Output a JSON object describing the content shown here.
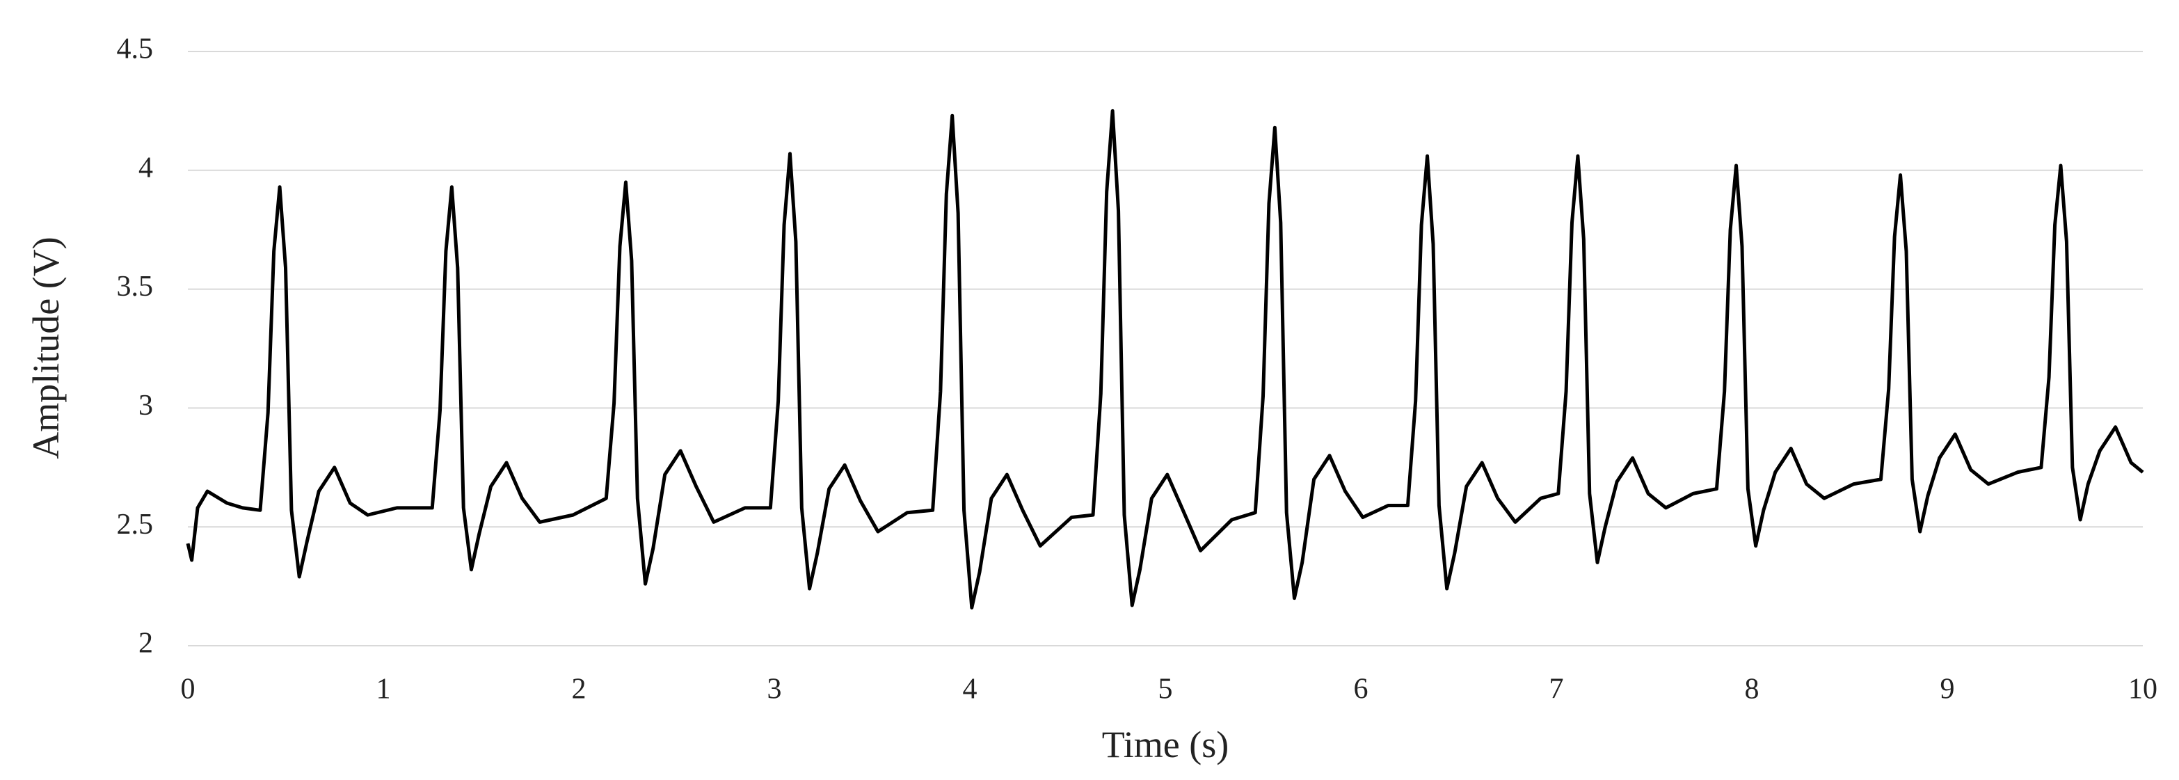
{
  "chart_data": {
    "type": "line",
    "xlabel": "Time (s)",
    "ylabel": "Amplitude (V)",
    "x": [
      0,
      0.02,
      0.05,
      0.1,
      0.2,
      0.28,
      0.37,
      0.41,
      0.44,
      0.47,
      0.5,
      0.53,
      0.57,
      0.61,
      0.67,
      0.75,
      0.83,
      0.92,
      1.07,
      1.25,
      1.29,
      1.32,
      1.35,
      1.38,
      1.41,
      1.45,
      1.49,
      1.55,
      1.63,
      1.71,
      1.8,
      1.97,
      2.14,
      2.18,
      2.21,
      2.24,
      2.27,
      2.3,
      2.34,
      2.38,
      2.44,
      2.52,
      2.6,
      2.69,
      2.85,
      2.98,
      3.02,
      3.05,
      3.08,
      3.11,
      3.14,
      3.18,
      3.22,
      3.28,
      3.36,
      3.44,
      3.53,
      3.68,
      3.81,
      3.85,
      3.88,
      3.91,
      3.94,
      3.97,
      4.01,
      4.05,
      4.11,
      4.19,
      4.27,
      4.36,
      4.52,
      4.63,
      4.67,
      4.7,
      4.73,
      4.76,
      4.79,
      4.83,
      4.87,
      4.93,
      5.01,
      5.09,
      5.18,
      5.34,
      5.46,
      5.5,
      5.53,
      5.56,
      5.59,
      5.62,
      5.66,
      5.7,
      5.76,
      5.84,
      5.92,
      6.01,
      6.14,
      6.24,
      6.28,
      6.31,
      6.34,
      6.37,
      6.4,
      6.44,
      6.48,
      6.54,
      6.62,
      6.7,
      6.79,
      6.92,
      7.01,
      7.05,
      7.08,
      7.11,
      7.14,
      7.17,
      7.21,
      7.25,
      7.31,
      7.39,
      7.47,
      7.56,
      7.7,
      7.82,
      7.86,
      7.89,
      7.92,
      7.95,
      7.98,
      8.02,
      8.06,
      8.12,
      8.2,
      8.28,
      8.37,
      8.52,
      8.66,
      8.7,
      8.73,
      8.76,
      8.79,
      8.82,
      8.86,
      8.9,
      8.96,
      9.04,
      9.12,
      9.21,
      9.36,
      9.48,
      9.52,
      9.55,
      9.58,
      9.61,
      9.64,
      9.68,
      9.72,
      9.78,
      9.86,
      9.94,
      10
    ],
    "values": [
      2.43,
      2.36,
      2.58,
      2.65,
      2.6,
      2.58,
      2.57,
      2.98,
      3.66,
      3.93,
      3.59,
      2.57,
      2.29,
      2.44,
      2.65,
      2.75,
      2.6,
      2.55,
      2.58,
      2.58,
      2.99,
      3.66,
      3.93,
      3.59,
      2.58,
      2.32,
      2.47,
      2.67,
      2.77,
      2.62,
      2.52,
      2.55,
      2.62,
      3.02,
      3.68,
      3.95,
      3.62,
      2.62,
      2.26,
      2.41,
      2.72,
      2.82,
      2.67,
      2.52,
      2.58,
      2.58,
      3.03,
      3.77,
      4.07,
      3.7,
      2.58,
      2.24,
      2.39,
      2.66,
      2.76,
      2.61,
      2.48,
      2.56,
      2.57,
      3.07,
      3.9,
      4.23,
      3.82,
      2.57,
      2.16,
      2.31,
      2.62,
      2.72,
      2.57,
      2.42,
      2.54,
      2.55,
      3.06,
      3.91,
      4.25,
      3.83,
      2.55,
      2.17,
      2.32,
      2.62,
      2.72,
      2.57,
      2.4,
      2.53,
      2.56,
      3.05,
      3.86,
      4.18,
      3.78,
      2.56,
      2.2,
      2.35,
      2.7,
      2.8,
      2.65,
      2.54,
      2.59,
      2.59,
      3.03,
      3.77,
      4.06,
      3.69,
      2.59,
      2.24,
      2.39,
      2.67,
      2.77,
      2.62,
      2.52,
      2.62,
      2.64,
      3.07,
      3.78,
      4.06,
      3.71,
      2.64,
      2.35,
      2.5,
      2.69,
      2.79,
      2.64,
      2.58,
      2.64,
      2.66,
      3.07,
      3.75,
      4.02,
      3.68,
      2.66,
      2.42,
      2.57,
      2.73,
      2.83,
      2.68,
      2.62,
      2.68,
      2.7,
      3.08,
      3.72,
      3.98,
      3.66,
      2.7,
      2.48,
      2.63,
      2.79,
      2.89,
      2.74,
      2.68,
      2.73,
      2.75,
      3.13,
      3.77,
      4.02,
      3.7,
      2.75,
      2.53,
      2.68,
      2.82,
      2.92,
      2.77,
      2.73
    ],
    "color": "#000000",
    "xlim": [
      0,
      10
    ],
    "xticks": [
      0,
      1,
      2,
      3,
      4,
      5,
      6,
      7,
      8,
      9,
      10
    ],
    "ylim": [
      2,
      4.5
    ],
    "yticks": [
      2,
      2.5,
      3,
      3.5,
      4,
      4.5
    ],
    "grid": true
  }
}
